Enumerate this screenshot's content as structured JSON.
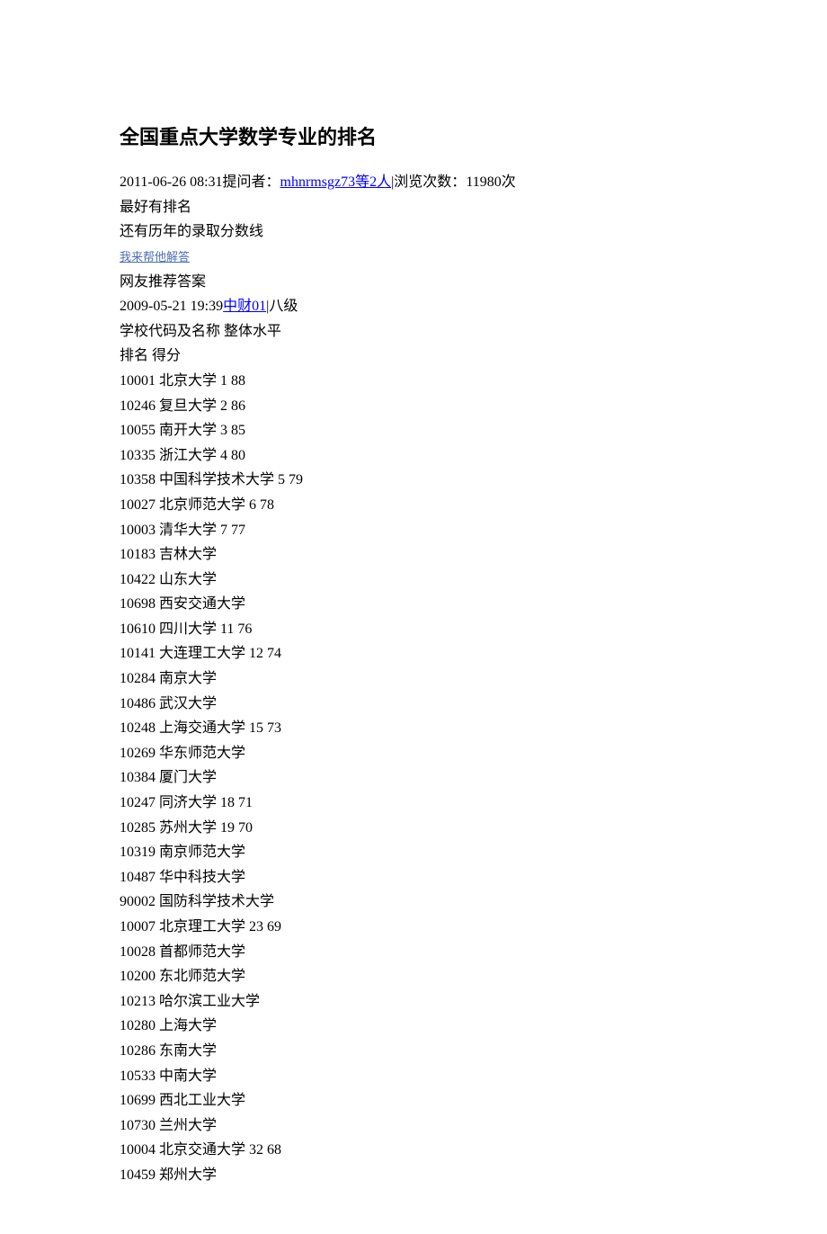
{
  "title": "全国重点大学数学专业的排名",
  "meta": {
    "datetime": "2011-06-26 08:31",
    "asker_label": "提问者：",
    "asker_link_text": "mhnrmsgz73等2人",
    "view_sep": "|",
    "view_label": "浏览次数：",
    "view_count": "11980次"
  },
  "lines": {
    "l1": "最好有排名",
    "l2": "还有历年的录取分数线",
    "help_link": "我来帮他解答",
    "l3": "网友推荐答案",
    "answer_datetime": "2009-05-21 19:39",
    "answer_user_link": "中财01",
    "answer_user_suffix": "|八级",
    "header1": "学校代码及名称  整体水平",
    "header2": "排名  得分"
  },
  "rankings": [
    {
      "code": "10001",
      "name": "北京大学",
      "rank": "1 88"
    },
    {
      "code": "10246",
      "name": "复旦大学",
      "rank": "2 86"
    },
    {
      "code": "10055",
      "name": "南开大学",
      "rank": "3 85"
    },
    {
      "code": "10335",
      "name": "浙江大学",
      "rank": "4 80"
    },
    {
      "code": "10358",
      "name": "中国科学技术大学",
      "rank": "5 79"
    },
    {
      "code": "10027",
      "name": "北京师范大学",
      "rank": "6 78"
    },
    {
      "code": "10003",
      "name": "清华大学",
      "rank": "7 77"
    },
    {
      "code": "10183",
      "name": "吉林大学",
      "rank": ""
    },
    {
      "code": "10422",
      "name": "山东大学",
      "rank": ""
    },
    {
      "code": "10698",
      "name": "西安交通大学",
      "rank": ""
    },
    {
      "code": "10610",
      "name": "四川大学",
      "rank": "11 76"
    },
    {
      "code": "10141",
      "name": "大连理工大学",
      "rank": "12 74"
    },
    {
      "code": "10284",
      "name": "南京大学",
      "rank": ""
    },
    {
      "code": "10486",
      "name": "武汉大学",
      "rank": ""
    },
    {
      "code": "10248",
      "name": "上海交通大学",
      "rank": "15 73"
    },
    {
      "code": "10269",
      "name": "华东师范大学",
      "rank": ""
    },
    {
      "code": "10384",
      "name": "厦门大学",
      "rank": ""
    },
    {
      "code": "10247",
      "name": "同济大学",
      "rank": "18 71"
    },
    {
      "code": "10285",
      "name": "苏州大学",
      "rank": "19 70"
    },
    {
      "code": "10319",
      "name": "南京师范大学",
      "rank": ""
    },
    {
      "code": "10487",
      "name": "华中科技大学",
      "rank": ""
    },
    {
      "code": "90002",
      "name": "国防科学技术大学",
      "rank": ""
    },
    {
      "code": "10007",
      "name": "北京理工大学",
      "rank": "23 69"
    },
    {
      "code": "10028",
      "name": "首都师范大学",
      "rank": ""
    },
    {
      "code": "10200",
      "name": "东北师范大学",
      "rank": ""
    },
    {
      "code": "10213",
      "name": "哈尔滨工业大学",
      "rank": ""
    },
    {
      "code": "10280",
      "name": "上海大学",
      "rank": ""
    },
    {
      "code": "10286",
      "name": "东南大学",
      "rank": ""
    },
    {
      "code": "10533",
      "name": "中南大学",
      "rank": ""
    },
    {
      "code": "10699",
      "name": "西北工业大学",
      "rank": ""
    },
    {
      "code": "10730",
      "name": "兰州大学",
      "rank": ""
    },
    {
      "code": "10004",
      "name": "北京交通大学",
      "rank": "32 68"
    },
    {
      "code": "10459",
      "name": "郑州大学",
      "rank": ""
    }
  ],
  "colors": {
    "text": "#000000",
    "link_blue": "#0000ff",
    "link_small_blue": "#4d6fb3",
    "background": "#ffffff"
  },
  "typography": {
    "title_fontsize": 22,
    "body_fontsize": 16,
    "small_link_fontsize": 13,
    "font_family": "SimSun"
  }
}
